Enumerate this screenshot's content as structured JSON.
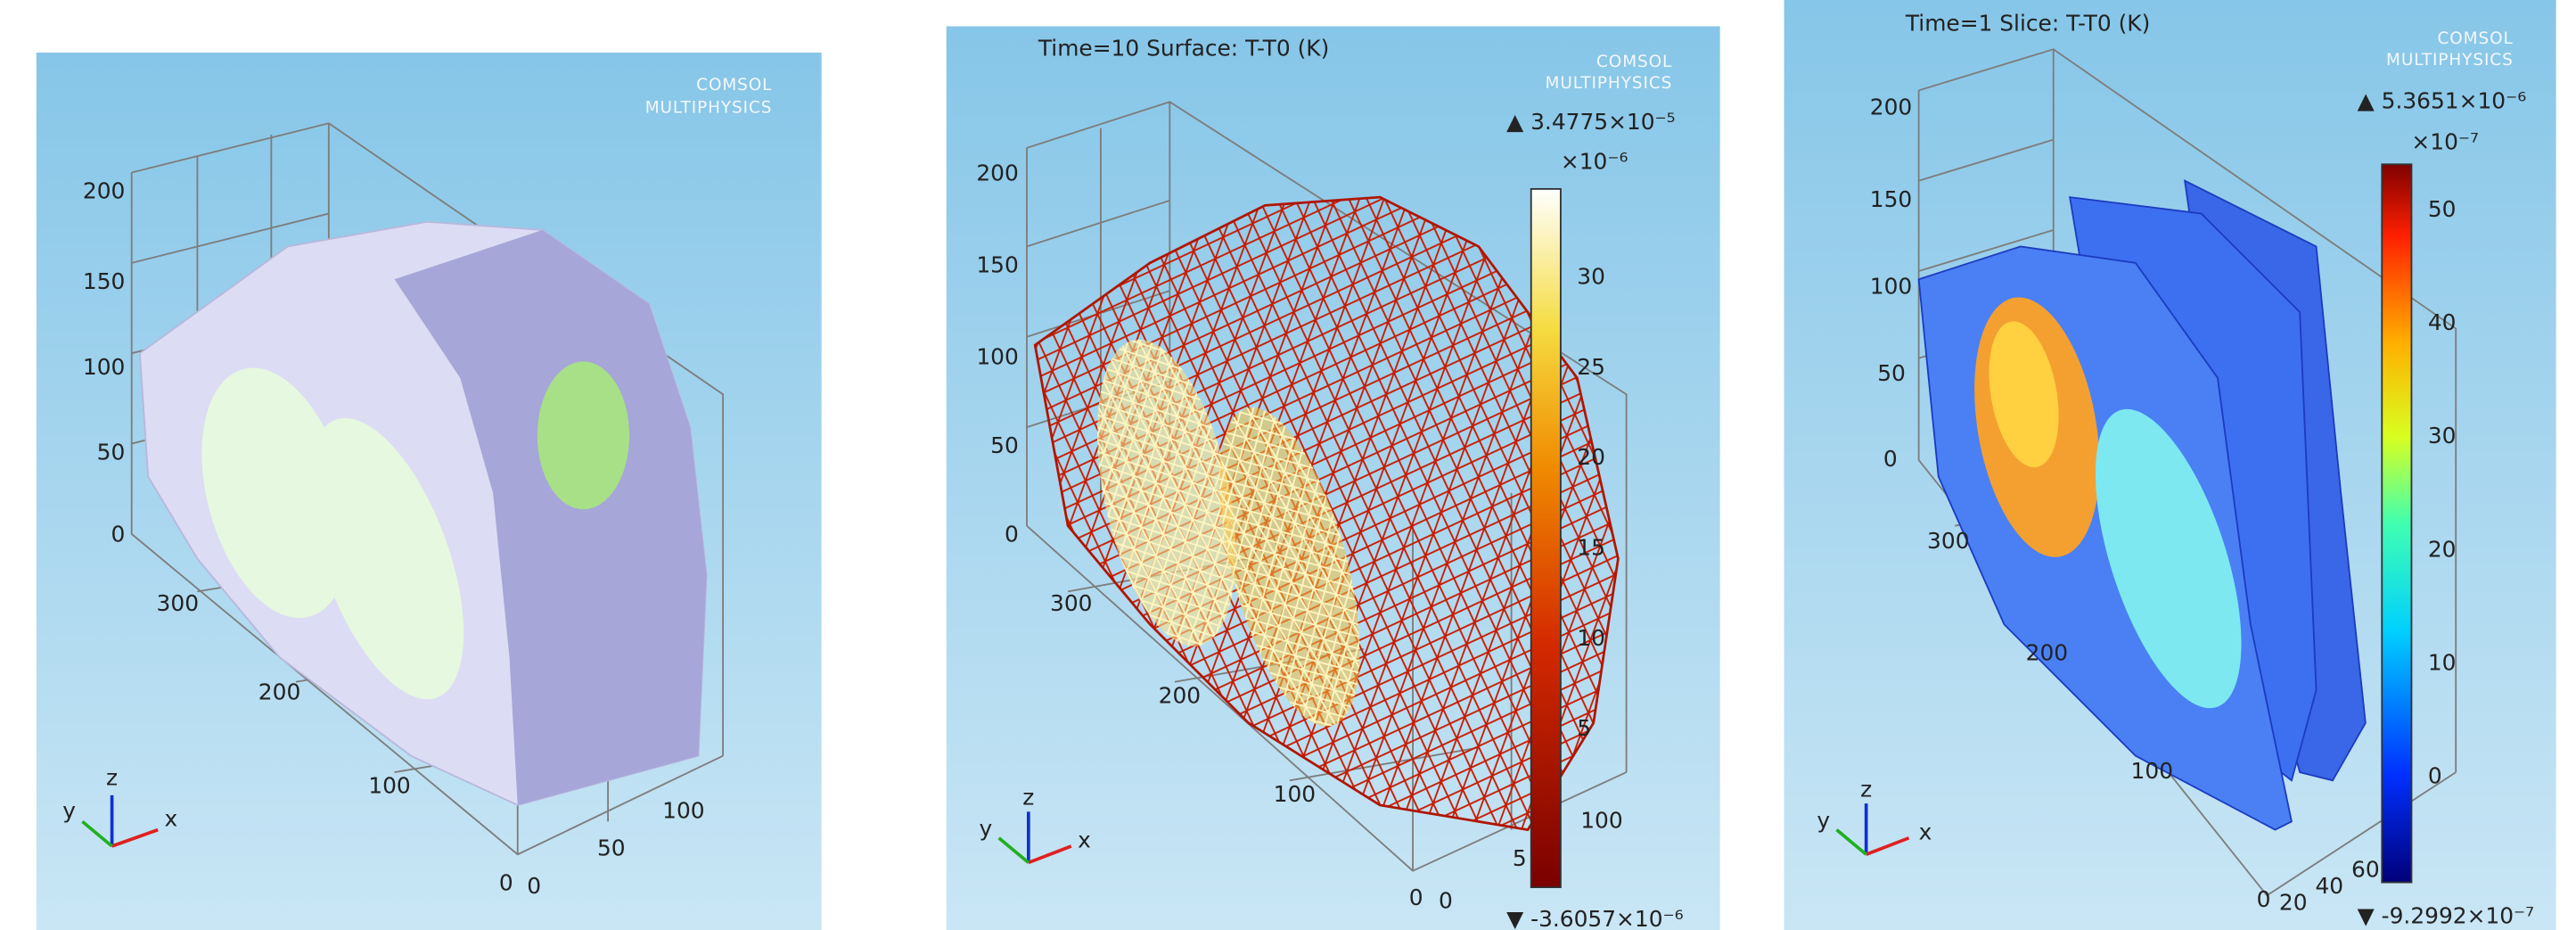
{
  "panels": [
    {
      "logo": [
        "COMSOL",
        "MULTIPHYSICS"
      ],
      "z_ticks": [
        "200",
        "150",
        "100",
        "50",
        "0"
      ],
      "y_ticks": [
        "300",
        "200",
        "100"
      ],
      "x_ticks": [
        "0",
        "0",
        "50",
        "100"
      ],
      "triad": [
        "z",
        "y",
        "x"
      ]
    },
    {
      "title": "Time=10   Surface: T-T0 (K)",
      "logo": [
        "COMSOL",
        "MULTIPHYSICS"
      ],
      "z_ticks": [
        "200",
        "150",
        "100",
        "50",
        "0"
      ],
      "y_ticks": [
        "300",
        "200",
        "100"
      ],
      "x_ticks": [
        "0",
        "0",
        "5",
        "100"
      ],
      "triad": [
        "z",
        "y",
        "x"
      ],
      "colorbar": {
        "max_label": "▲ 3.4775×10⁻⁵",
        "exponent": "×10⁻⁶",
        "ticks": [
          "30",
          "25",
          "20",
          "15",
          "10",
          "5"
        ],
        "min_label": "▼ -3.6057×10⁻⁶"
      }
    },
    {
      "title": "Time=1   Slice: T-T0 (K)",
      "logo": [
        "COMSOL",
        "MULTIPHYSICS"
      ],
      "z_ticks": [
        "200",
        "150",
        "100",
        "50",
        "0"
      ],
      "y_ticks": [
        "300",
        "200",
        "100"
      ],
      "x_ticks": [
        "0",
        "20",
        "40",
        "60"
      ],
      "triad": [
        "z",
        "y",
        "x"
      ],
      "colorbar": {
        "max_label": "▲ 5.3651×10⁻⁶",
        "exponent": "×10⁻⁷",
        "ticks": [
          "50",
          "40",
          "30",
          "20",
          "10",
          "0"
        ],
        "min_label": "▼ -9.2992×10⁻⁷"
      }
    }
  ]
}
